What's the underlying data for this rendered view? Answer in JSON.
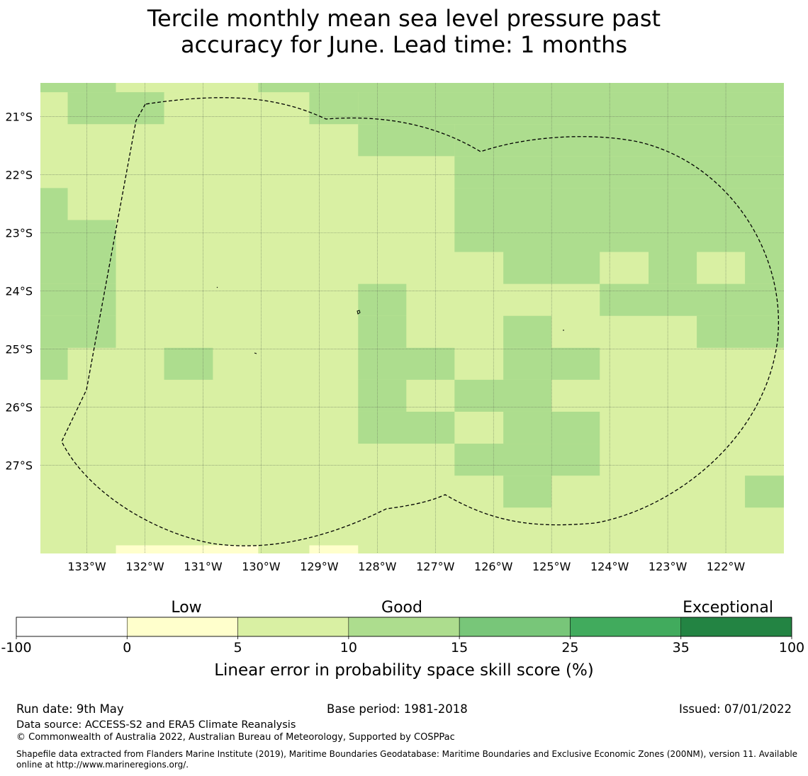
{
  "title": {
    "line1": "Tercile monthly mean sea level pressure past",
    "line2": "accuracy for June. Lead time: 1 months"
  },
  "map": {
    "lon_ticks": [
      "133°W",
      "132°W",
      "131°W",
      "130°W",
      "129°W",
      "128°W",
      "127°W",
      "126°W",
      "125°W",
      "124°W",
      "123°W",
      "122°W"
    ],
    "lat_ticks": [
      "21°S",
      "22°S",
      "23°S",
      "24°S",
      "25°S",
      "26°S",
      "27°S"
    ],
    "lon_range": [
      -133.8,
      -121.0
    ],
    "lat_range": [
      -28.52,
      -20.42
    ],
    "grid_lines": true,
    "boundary": "dashed EEZ outline (Pitcairn Islands)",
    "cells": [
      {
        "lon": [
          -133.8,
          -132.5
        ],
        "lat": [
          -20.58,
          -20.42
        ],
        "bin": "10-15"
      },
      {
        "lon": [
          -132.5,
          -130.05
        ],
        "lat": [
          -20.58,
          -20.42
        ],
        "bin": "5-10"
      },
      {
        "lon": [
          -130.05,
          -121.0
        ],
        "lat": [
          -20.58,
          -20.42
        ],
        "bin": "10-15"
      },
      {
        "lon": [
          -133.33,
          -131.67
        ],
        "lat": [
          -21.13,
          -20.58
        ],
        "bin": "10-15"
      },
      {
        "lon": [
          -129.17,
          -128.33
        ],
        "lat": [
          -21.13,
          -20.58
        ],
        "bin": "10-15"
      },
      {
        "lon": [
          -128.33,
          -121.0
        ],
        "lat": [
          -21.13,
          -20.58
        ],
        "bin": "10-15"
      },
      {
        "lon": [
          -128.33,
          -126.67
        ],
        "lat": [
          -21.68,
          -21.13
        ],
        "bin": "10-15"
      },
      {
        "lon": [
          -126.67,
          -121.0
        ],
        "lat": [
          -21.68,
          -21.13
        ],
        "bin": "10-15"
      },
      {
        "lon": [
          -126.67,
          -121.0
        ],
        "lat": [
          -22.23,
          -21.68
        ],
        "bin": "10-15"
      },
      {
        "lon": [
          -133.8,
          -133.33
        ],
        "lat": [
          -22.78,
          -22.23
        ],
        "bin": "10-15"
      },
      {
        "lon": [
          -126.67,
          -121.0
        ],
        "lat": [
          -22.78,
          -22.23
        ],
        "bin": "10-15"
      },
      {
        "lon": [
          -133.8,
          -132.5
        ],
        "lat": [
          -23.33,
          -22.78
        ],
        "bin": "10-15"
      },
      {
        "lon": [
          -126.67,
          -121.0
        ],
        "lat": [
          -23.33,
          -22.78
        ],
        "bin": "10-15"
      },
      {
        "lon": [
          -133.8,
          -132.5
        ],
        "lat": [
          -23.88,
          -23.33
        ],
        "bin": "10-15"
      },
      {
        "lon": [
          -125.83,
          -124.17
        ],
        "lat": [
          -23.88,
          -23.33
        ],
        "bin": "10-15"
      },
      {
        "lon": [
          -123.33,
          -122.5
        ],
        "lat": [
          -23.88,
          -23.33
        ],
        "bin": "10-15"
      },
      {
        "lon": [
          -121.67,
          -121.0
        ],
        "lat": [
          -23.88,
          -23.33
        ],
        "bin": "10-15"
      },
      {
        "lon": [
          -133.8,
          -132.5
        ],
        "lat": [
          -24.43,
          -23.88
        ],
        "bin": "10-15"
      },
      {
        "lon": [
          -128.33,
          -127.5
        ],
        "lat": [
          -24.43,
          -23.88
        ],
        "bin": "10-15"
      },
      {
        "lon": [
          -124.17,
          -121.0
        ],
        "lat": [
          -24.43,
          -23.88
        ],
        "bin": "10-15"
      },
      {
        "lon": [
          -133.8,
          -132.5
        ],
        "lat": [
          -24.98,
          -24.43
        ],
        "bin": "10-15"
      },
      {
        "lon": [
          -128.33,
          -127.5
        ],
        "lat": [
          -24.98,
          -24.43
        ],
        "bin": "10-15"
      },
      {
        "lon": [
          -125.83,
          -125.0
        ],
        "lat": [
          -24.98,
          -24.43
        ],
        "bin": "10-15"
      },
      {
        "lon": [
          -122.5,
          -121.0
        ],
        "lat": [
          -24.98,
          -24.43
        ],
        "bin": "10-15"
      },
      {
        "lon": [
          -133.8,
          -133.33
        ],
        "lat": [
          -25.53,
          -24.98
        ],
        "bin": "10-15"
      },
      {
        "lon": [
          -131.67,
          -130.83
        ],
        "lat": [
          -25.53,
          -24.98
        ],
        "bin": "10-15"
      },
      {
        "lon": [
          -128.33,
          -126.67
        ],
        "lat": [
          -25.53,
          -24.98
        ],
        "bin": "10-15"
      },
      {
        "lon": [
          -125.83,
          -124.17
        ],
        "lat": [
          -25.53,
          -24.98
        ],
        "bin": "10-15"
      },
      {
        "lon": [
          -128.33,
          -127.5
        ],
        "lat": [
          -26.08,
          -25.53
        ],
        "bin": "10-15"
      },
      {
        "lon": [
          -126.67,
          -125.0
        ],
        "lat": [
          -26.08,
          -25.53
        ],
        "bin": "10-15"
      },
      {
        "lon": [
          -128.33,
          -126.67
        ],
        "lat": [
          -26.63,
          -26.08
        ],
        "bin": "10-15"
      },
      {
        "lon": [
          -125.83,
          -124.17
        ],
        "lat": [
          -26.63,
          -26.08
        ],
        "bin": "10-15"
      },
      {
        "lon": [
          -126.67,
          -124.17
        ],
        "lat": [
          -27.18,
          -26.63
        ],
        "bin": "10-15"
      },
      {
        "lon": [
          -125.83,
          -125.0
        ],
        "lat": [
          -27.73,
          -27.18
        ],
        "bin": "10-15"
      },
      {
        "lon": [
          -121.67,
          -121.0
        ],
        "lat": [
          -27.73,
          -27.18
        ],
        "bin": "10-15"
      },
      {
        "lon": [
          -132.5,
          -130.05
        ],
        "lat": [
          -28.52,
          -28.38
        ],
        "bin": "0-5"
      },
      {
        "lon": [
          -129.17,
          -128.33
        ],
        "lat": [
          -28.52,
          -28.38
        ],
        "bin": "0-5"
      }
    ],
    "default_bin": "5-10"
  },
  "colorbar": {
    "categories": [
      "Low",
      "Good",
      "Exceptional"
    ],
    "bins": [
      {
        "range": "-100-0",
        "color": "#ffffff"
      },
      {
        "range": "0-5",
        "color": "#ffffcc"
      },
      {
        "range": "5-10",
        "color": "#d9f0a3"
      },
      {
        "range": "10-15",
        "color": "#addd8e"
      },
      {
        "range": "15-25",
        "color": "#78c679"
      },
      {
        "range": "25-35",
        "color": "#41ab5d"
      },
      {
        "range": "35-100",
        "color": "#238443"
      }
    ],
    "tick_labels": [
      "-100",
      "0",
      "5",
      "10",
      "15",
      "25",
      "35",
      "100"
    ],
    "label": "Linear error in probability space skill score (%)"
  },
  "footer": {
    "run_date": "Run date: 9th May",
    "base_period": "Base period: 1981-2018",
    "issued": "Issued: 07/01/2022",
    "data_source": "Data source: ACCESS-S2 and ERA5 Climate Reanalysis",
    "copyright": "© Commonwealth of Australia 2022, Australian Bureau of Meteorology, Supported by COSPPac",
    "shapefile": "Shapefile data extracted from Flanders Marine Institute (2019), Maritime Boundaries Geodatabase: Maritime Boundaries and Exclusive Economic Zones (200NM), version 11. Available online at http://www.marineregions.org/."
  }
}
